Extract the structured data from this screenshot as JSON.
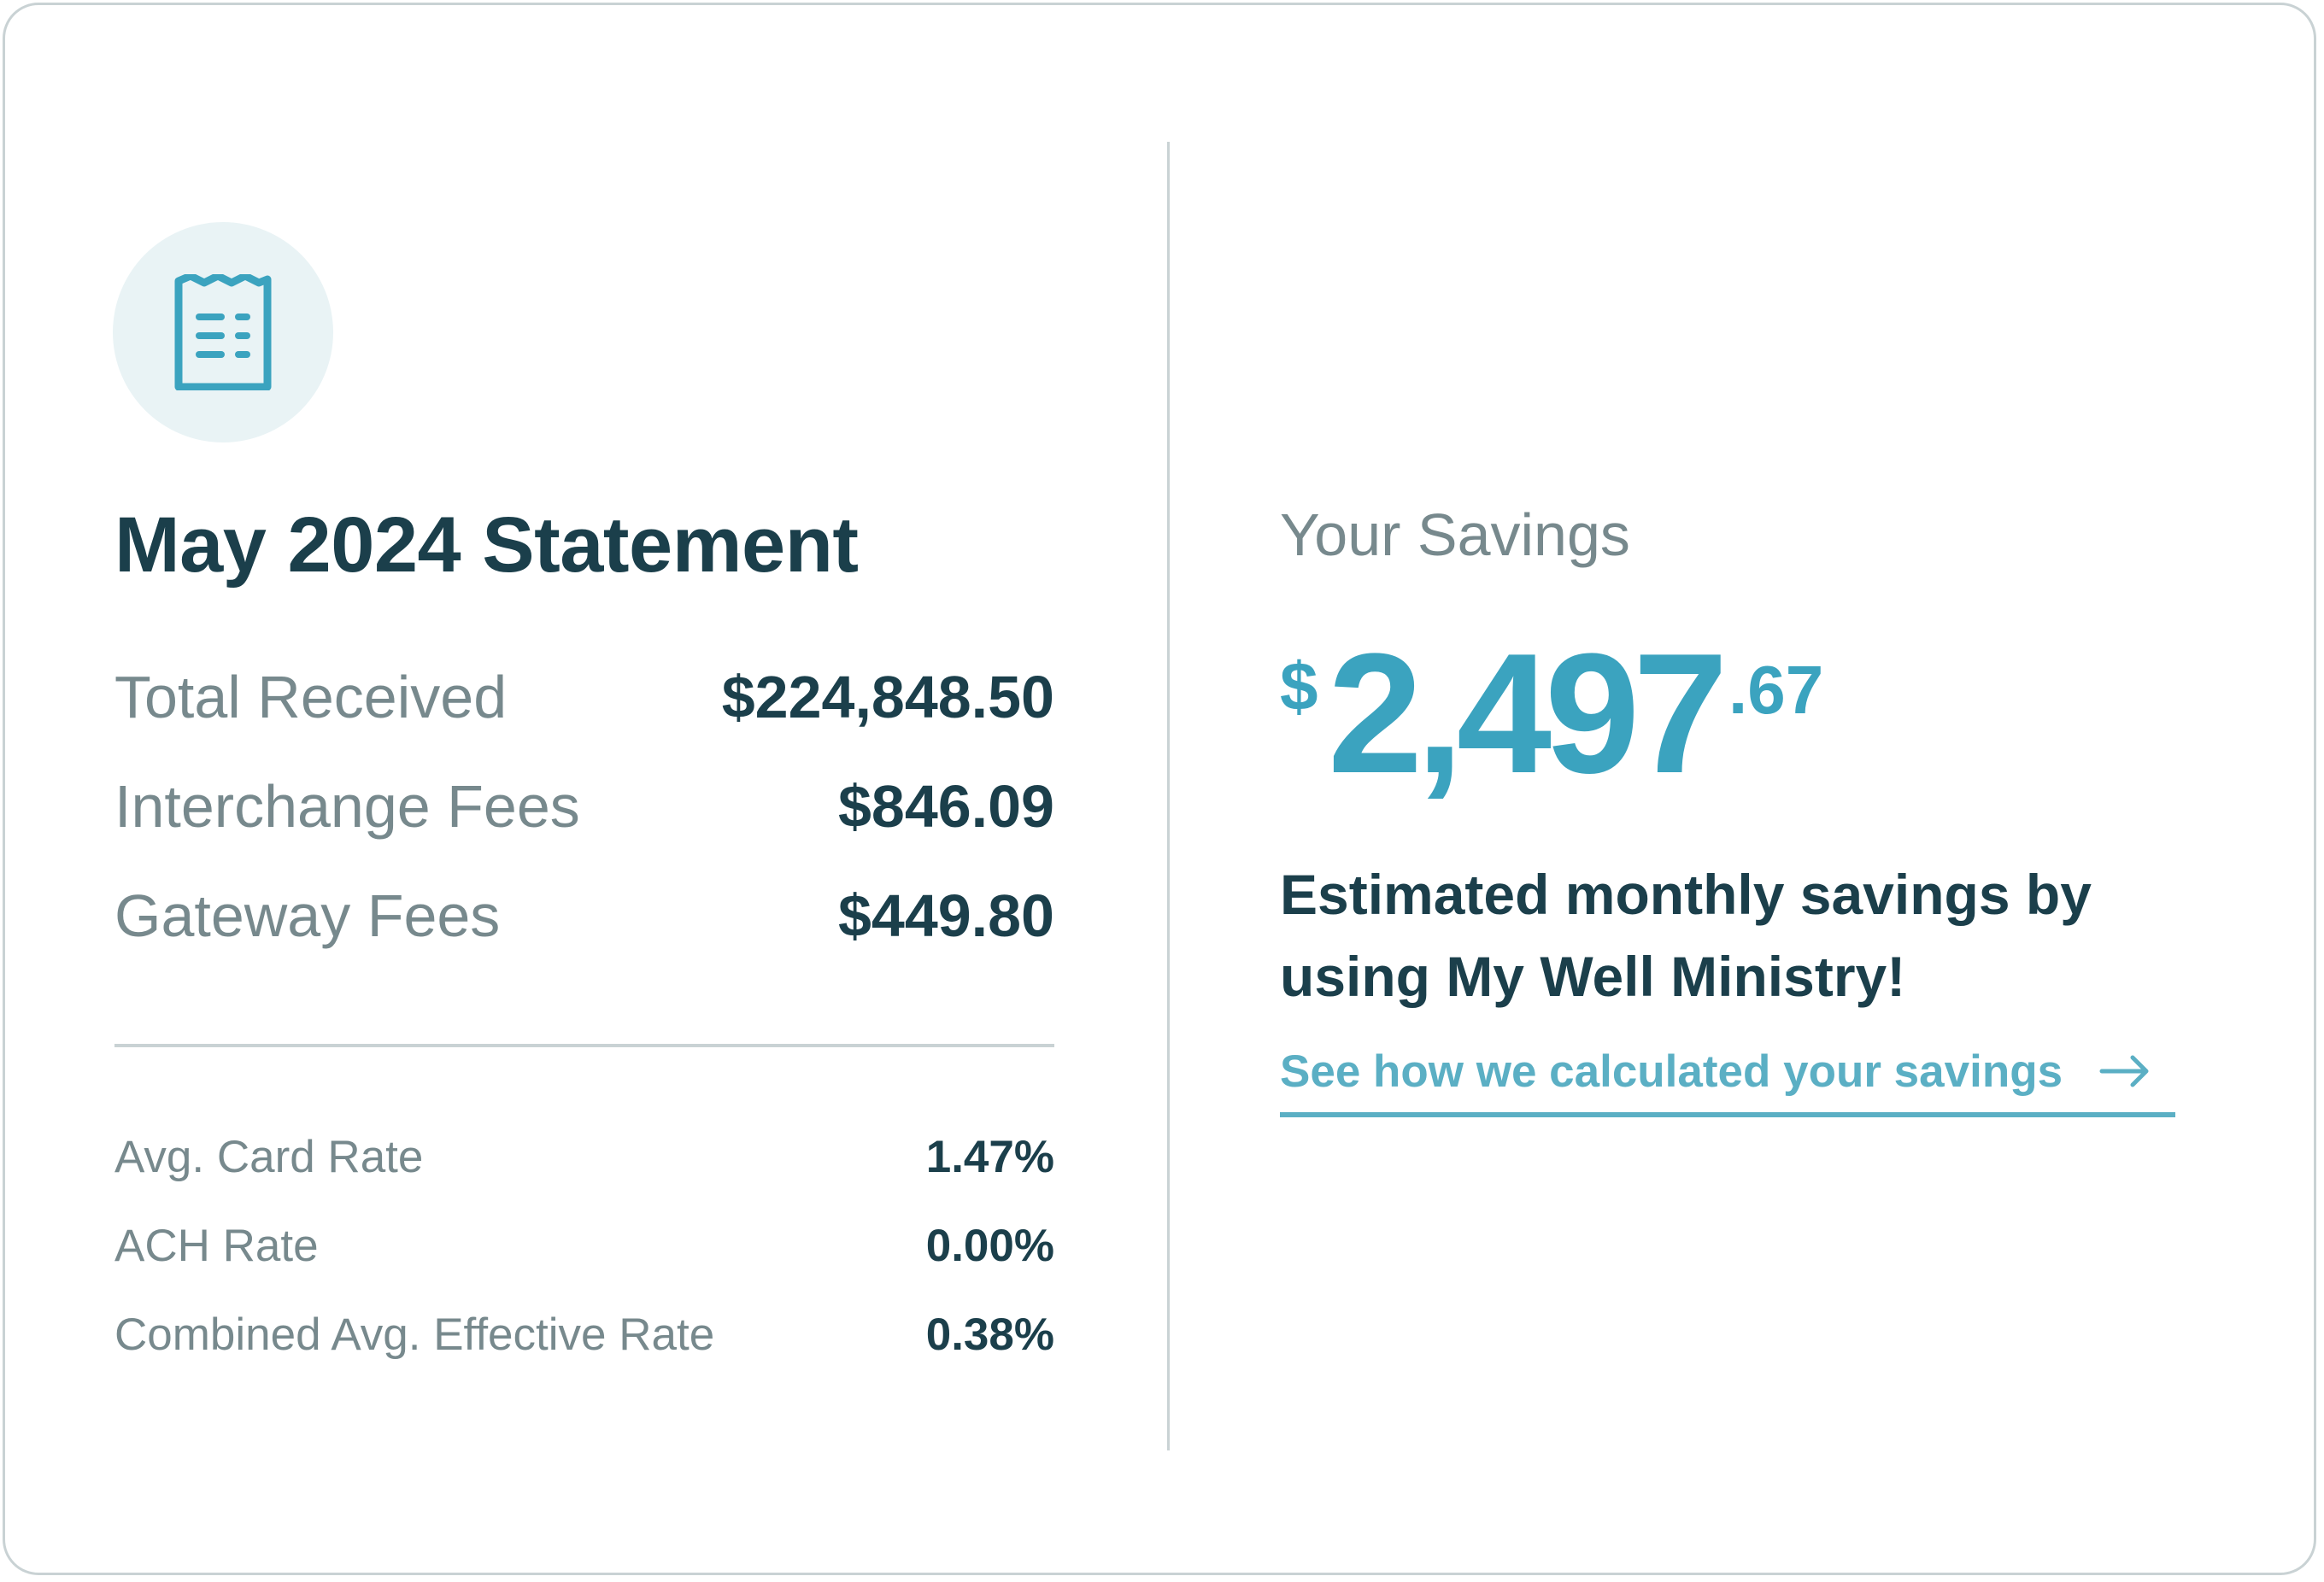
{
  "statement": {
    "title": "May 2024 Statement",
    "icon": "receipt-icon",
    "summary": [
      {
        "label": "Total Received",
        "value": "$224,848.50"
      },
      {
        "label": "Interchange Fees",
        "value": "$846.09"
      },
      {
        "label": "Gateway Fees",
        "value": "$449.80"
      }
    ],
    "rates": [
      {
        "label": "Avg. Card Rate",
        "value": "1.47%"
      },
      {
        "label": "ACH Rate",
        "value": "0.00%"
      },
      {
        "label": "Combined Avg. Effective Rate",
        "value": "0.38%"
      }
    ]
  },
  "savings": {
    "heading": "Your Savings",
    "currency_symbol": "$",
    "amount_whole": "2,497",
    "amount_cents": ".67",
    "description": "Estimated monthly savings by using My Well Ministry!",
    "link_label": "See how we calculated your savings",
    "link_icon": "arrow-right-icon"
  },
  "colors": {
    "accent": "#3ba3bf",
    "link": "#5bafc4",
    "heading": "#1b3f4b",
    "muted": "#77898d",
    "border": "#c9d2d4",
    "icon_bg": "#e9f3f5"
  }
}
